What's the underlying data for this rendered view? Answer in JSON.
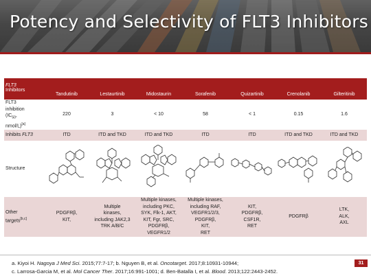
{
  "slide": {
    "title": "Potency and Selectivity of FLT3 Inhibitors",
    "page_number": "31"
  },
  "table": {
    "header": {
      "label_line1": "FLT3",
      "label_line2": "Inhibitors",
      "columns": [
        "Tandutinib",
        "Lestaurtinib",
        "Midostaurin",
        "Sorafenib",
        "Quizartinib",
        "Crenolanib",
        "Gilteritinib"
      ]
    },
    "rows": {
      "ic50": {
        "label_line1": "FLT3",
        "label_line2": "inhibition",
        "label_line3_main": "(IC",
        "label_line3_sub": "50",
        "label_line3_end": ",",
        "label_line4_main": "nmol/L)",
        "label_line4_sup": "[a]",
        "values": [
          "220",
          "3",
          "< 10",
          "58",
          "< 1",
          "0.15",
          "1.6"
        ]
      },
      "inhibits": {
        "label_prefix": "Inhibits ",
        "label_italic": "FLT3",
        "values": [
          "ITD",
          "ITD and TKD",
          "ITD and TKD",
          "ITD",
          "ITD",
          "ITD and TKD",
          "ITD and TKD"
        ]
      },
      "structure": {
        "label": "Structure"
      },
      "other": {
        "label_main": "Other",
        "label_line2": "targets",
        "label_sup": "[b,c]",
        "values": [
          [
            "PDGFRβ,",
            "KIT,"
          ],
          [
            "Multiple",
            "kinases,",
            "including JAK2,3",
            "TRK A/B/C"
          ],
          [
            "Multiple kinases,",
            "including PKC,",
            "SYK, Flk-1, AKT,",
            "KIT, Fgr, SRC,",
            "PDGFRβ,",
            "VEGFR1/2"
          ],
          [
            "Multiple kinases,",
            "including RAF,",
            "VEGFR1/2/3,",
            "PDGFRβ,",
            "KIT,",
            "RET"
          ],
          [
            "KIT,",
            "PDGFRβ,",
            "CSF1R,",
            "RET"
          ],
          [
            "PDGFRβ"
          ],
          [
            "LTK,",
            "ALK,",
            "AXL"
          ]
        ]
      }
    }
  },
  "references": {
    "line1": {
      "a_prefix": "a. Kiyoi H. ",
      "a_journal": "Nagoya J Med Sci.",
      "a_rest": " 2015;77:7-17; b. Nguyen B, et al. ",
      "b_journal": "Oncotarget",
      "b_rest": ". 2017;8:10931-10944;"
    },
    "line2": {
      "c_prefix": "c. Larrosa-Garcia M, et al. ",
      "c_journal": "Mol Cancer Ther",
      "c_rest": ". 2017;16:991-1001; d. Ben-Batalla I, et al. ",
      "d_journal": "Blood",
      "d_rest": ". 2013;122:2443-2452."
    }
  }
}
